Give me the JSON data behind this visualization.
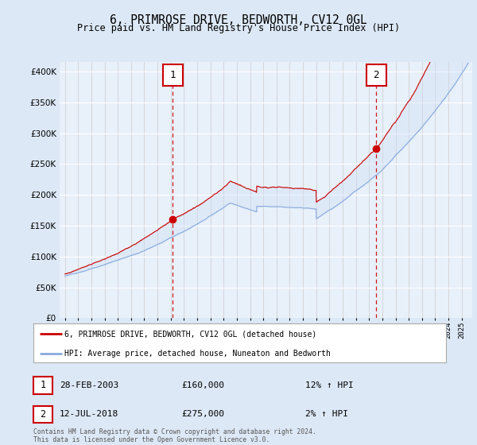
{
  "title": "6, PRIMROSE DRIVE, BEDWORTH, CV12 0GL",
  "subtitle": "Price paid vs. HM Land Registry's House Price Index (HPI)",
  "ytick_values": [
    0,
    50000,
    100000,
    150000,
    200000,
    250000,
    300000,
    350000,
    400000
  ],
  "ylim": [
    0,
    415000
  ],
  "legend_line1": "6, PRIMROSE DRIVE, BEDWORTH, CV12 0GL (detached house)",
  "legend_line2": "HPI: Average price, detached house, Nuneaton and Bedworth",
  "annotation1_date": "28-FEB-2003",
  "annotation1_price": "£160,000",
  "annotation1_hpi": "12% ↑ HPI",
  "annotation2_date": "12-JUL-2018",
  "annotation2_price": "£275,000",
  "annotation2_hpi": "2% ↑ HPI",
  "sale1_x": 2003.15,
  "sale1_y": 160000,
  "sale2_x": 2018.54,
  "sale2_y": 275000,
  "footer": "Contains HM Land Registry data © Crown copyright and database right 2024.\nThis data is licensed under the Open Government Licence v3.0.",
  "line_color_property": "#cc0000",
  "line_color_hpi": "#88aadd",
  "fill_color": "#ccddf5",
  "background_color": "#dce8f5",
  "plot_bg": "#e8f0fa",
  "grid_color": "#ffffff",
  "annotation_box_color": "#cc0000",
  "xlim_start": 1994.6,
  "xlim_end": 2025.8
}
